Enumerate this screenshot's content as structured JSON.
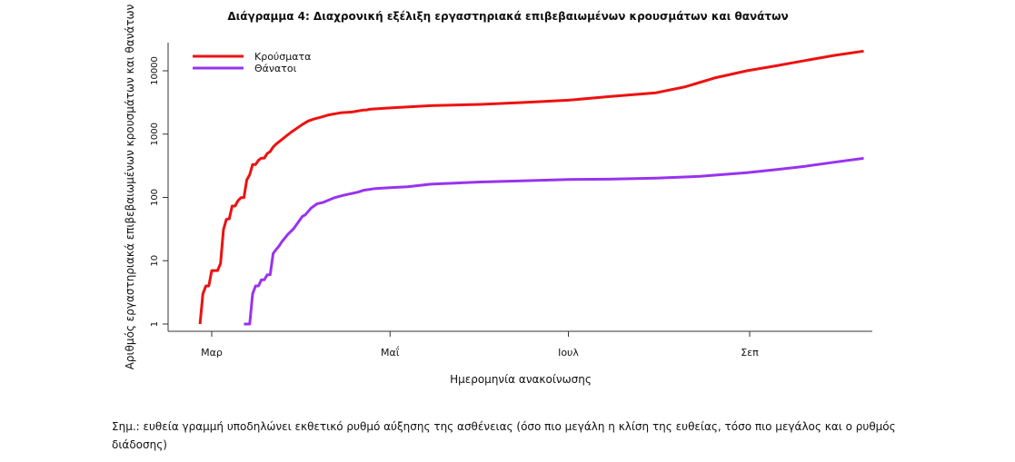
{
  "chart_data": {
    "type": "line",
    "title": "Διάγραμμα 4: Διαχρονική εξέλιξη εργαστηριακά επιβεβαιωμένων κρουσμάτων και θανάτων",
    "xlabel": "Ημερομηνία ανακοίνωσης",
    "ylabel": "Αριθμός εργαστηριακά επιβεβαιωμένων κρουσμάτων και θανάτων",
    "y_scale": "log",
    "ylim": [
      1,
      21000
    ],
    "x_ticks": [
      {
        "label": "Μαρ",
        "date": "2020-03-01"
      },
      {
        "label": "Μαΐ",
        "date": "2020-05-01"
      },
      {
        "label": "Ιουλ",
        "date": "2020-07-01"
      },
      {
        "label": "Σεπ",
        "date": "2020-09-01"
      }
    ],
    "y_ticks": [
      {
        "label": "1",
        "value": 1
      },
      {
        "label": "10",
        "value": 10
      },
      {
        "label": "100",
        "value": 100
      },
      {
        "label": "1000",
        "value": 1000
      },
      {
        "label": "10000",
        "value": 10000
      }
    ],
    "legend_position": "top-left",
    "grid": false,
    "series": [
      {
        "name": "Κρούσματα",
        "color": "#ee1111",
        "points": [
          [
            "2020-02-26",
            1
          ],
          [
            "2020-02-27",
            3
          ],
          [
            "2020-02-28",
            4
          ],
          [
            "2020-02-29",
            4
          ],
          [
            "2020-03-01",
            7
          ],
          [
            "2020-03-03",
            7
          ],
          [
            "2020-03-04",
            9
          ],
          [
            "2020-03-05",
            31
          ],
          [
            "2020-03-06",
            45
          ],
          [
            "2020-03-07",
            46
          ],
          [
            "2020-03-08",
            73
          ],
          [
            "2020-03-09",
            73
          ],
          [
            "2020-03-10",
            89
          ],
          [
            "2020-03-11",
            99
          ],
          [
            "2020-03-12",
            99
          ],
          [
            "2020-03-13",
            190
          ],
          [
            "2020-03-14",
            228
          ],
          [
            "2020-03-15",
            331
          ],
          [
            "2020-03-16",
            331
          ],
          [
            "2020-03-17",
            387
          ],
          [
            "2020-03-18",
            418
          ],
          [
            "2020-03-19",
            418
          ],
          [
            "2020-03-20",
            495
          ],
          [
            "2020-03-21",
            530
          ],
          [
            "2020-03-22",
            624
          ],
          [
            "2020-03-23",
            695
          ],
          [
            "2020-03-25",
            821
          ],
          [
            "2020-03-28",
            1061
          ],
          [
            "2020-04-01",
            1415
          ],
          [
            "2020-04-03",
            1613
          ],
          [
            "2020-04-05",
            1735
          ],
          [
            "2020-04-07",
            1832
          ],
          [
            "2020-04-10",
            2011
          ],
          [
            "2020-04-14",
            2170
          ],
          [
            "2020-04-18",
            2235
          ],
          [
            "2020-04-22",
            2401
          ],
          [
            "2020-04-23",
            2408
          ],
          [
            "2020-04-24",
            2463
          ],
          [
            "2020-05-01",
            2591
          ],
          [
            "2020-05-15",
            2819
          ],
          [
            "2020-06-01",
            2952
          ],
          [
            "2020-06-15",
            3148
          ],
          [
            "2020-07-01",
            3432
          ],
          [
            "2020-07-15",
            3910
          ],
          [
            "2020-07-31",
            4500
          ],
          [
            "2020-08-10",
            5600
          ],
          [
            "2020-08-20",
            7700
          ],
          [
            "2020-08-31",
            10000
          ],
          [
            "2020-09-10",
            12000
          ],
          [
            "2020-09-20",
            14500
          ],
          [
            "2020-09-30",
            17500
          ],
          [
            "2020-10-10",
            20500
          ]
        ]
      },
      {
        "name": "Θάνατοι",
        "color": "#9933ee",
        "points": [
          [
            "2020-03-12",
            1
          ],
          [
            "2020-03-14",
            1
          ],
          [
            "2020-03-15",
            3
          ],
          [
            "2020-03-16",
            4
          ],
          [
            "2020-03-17",
            4
          ],
          [
            "2020-03-18",
            5
          ],
          [
            "2020-03-19",
            5
          ],
          [
            "2020-03-20",
            6
          ],
          [
            "2020-03-21",
            6
          ],
          [
            "2020-03-22",
            13
          ],
          [
            "2020-03-23",
            15
          ],
          [
            "2020-03-24",
            17
          ],
          [
            "2020-03-25",
            20
          ],
          [
            "2020-03-27",
            26
          ],
          [
            "2020-03-29",
            32
          ],
          [
            "2020-04-01",
            50
          ],
          [
            "2020-04-02",
            53
          ],
          [
            "2020-04-04",
            68
          ],
          [
            "2020-04-06",
            79
          ],
          [
            "2020-04-08",
            83
          ],
          [
            "2020-04-12",
            99
          ],
          [
            "2020-04-15",
            108
          ],
          [
            "2020-04-20",
            121
          ],
          [
            "2020-04-22",
            130
          ],
          [
            "2020-04-26",
            138
          ],
          [
            "2020-05-01",
            143
          ],
          [
            "2020-05-07",
            147
          ],
          [
            "2020-05-15",
            162
          ],
          [
            "2020-06-01",
            175
          ],
          [
            "2020-06-15",
            183
          ],
          [
            "2020-07-01",
            192
          ],
          [
            "2020-07-15",
            194
          ],
          [
            "2020-07-31",
            202
          ],
          [
            "2020-08-15",
            215
          ],
          [
            "2020-08-31",
            246
          ],
          [
            "2020-09-10",
            275
          ],
          [
            "2020-09-20",
            310
          ],
          [
            "2020-09-30",
            360
          ],
          [
            "2020-10-10",
            415
          ]
        ]
      }
    ]
  },
  "note": "Σημ.: ευθεία γραμμή υποδηλώνει εκθετικό ρυθμό αύξησης της ασθένειας (όσο πιο μεγάλη η κλίση της ευθείας, τόσο πιο μεγάλος και ο ρυθμός διάδοσης)"
}
